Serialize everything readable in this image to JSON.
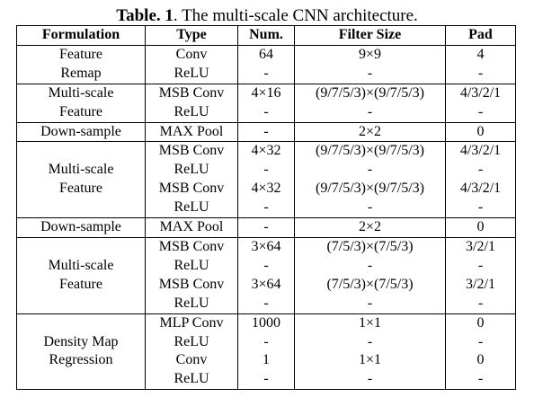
{
  "caption": {
    "label": "Table. 1",
    "text": ". The multi-scale CNN architecture."
  },
  "headers": [
    "Formulation",
    "Type",
    "Num.",
    "Filter Size",
    "Pad"
  ],
  "groups": [
    {
      "formulation": [
        "Feature",
        "Remap"
      ],
      "rows": [
        {
          "type": "Conv",
          "num": "64",
          "filter": "9×9",
          "pad": "4"
        },
        {
          "type": "ReLU",
          "num": "-",
          "filter": "-",
          "pad": "-"
        }
      ]
    },
    {
      "formulation": [
        "Multi-scale",
        "Feature"
      ],
      "rows": [
        {
          "type": "MSB Conv",
          "num": "4×16",
          "filter": "(9/7/5/3)×(9/7/5/3)",
          "pad": "4/3/2/1"
        },
        {
          "type": "ReLU",
          "num": "-",
          "filter": "-",
          "pad": "-"
        }
      ]
    },
    {
      "formulation": [
        "Down-sample"
      ],
      "rows": [
        {
          "type": "MAX Pool",
          "num": "-",
          "filter": "2×2",
          "pad": "0"
        }
      ]
    },
    {
      "formulation": [
        "Multi-scale",
        "Feature"
      ],
      "rows": [
        {
          "type": "MSB Conv",
          "num": "4×32",
          "filter": "(9/7/5/3)×(9/7/5/3)",
          "pad": "4/3/2/1"
        },
        {
          "type": "ReLU",
          "num": "-",
          "filter": "-",
          "pad": "-"
        },
        {
          "type": "MSB Conv",
          "num": "4×32",
          "filter": "(9/7/5/3)×(9/7/5/3)",
          "pad": "4/3/2/1"
        },
        {
          "type": "ReLU",
          "num": "-",
          "filter": "-",
          "pad": "-"
        }
      ]
    },
    {
      "formulation": [
        "Down-sample"
      ],
      "rows": [
        {
          "type": "MAX Pool",
          "num": "-",
          "filter": "2×2",
          "pad": "0"
        }
      ]
    },
    {
      "formulation": [
        "Multi-scale",
        "Feature"
      ],
      "rows": [
        {
          "type": "MSB Conv",
          "num": "3×64",
          "filter": "(7/5/3)×(7/5/3)",
          "pad": "3/2/1"
        },
        {
          "type": "ReLU",
          "num": "-",
          "filter": "-",
          "pad": "-"
        },
        {
          "type": "MSB Conv",
          "num": "3×64",
          "filter": "(7/5/3)×(7/5/3)",
          "pad": "3/2/1"
        },
        {
          "type": "ReLU",
          "num": "-",
          "filter": "-",
          "pad": "-"
        }
      ]
    },
    {
      "formulation": [
        "Density Map",
        "Regression"
      ],
      "rows": [
        {
          "type": "MLP Conv",
          "num": "1000",
          "filter": "1×1",
          "pad": "0"
        },
        {
          "type": "ReLU",
          "num": "-",
          "filter": "-",
          "pad": "-"
        },
        {
          "type": "Conv",
          "num": "1",
          "filter": "1×1",
          "pad": "0"
        },
        {
          "type": "ReLU",
          "num": "-",
          "filter": "-",
          "pad": "-"
        }
      ]
    }
  ]
}
